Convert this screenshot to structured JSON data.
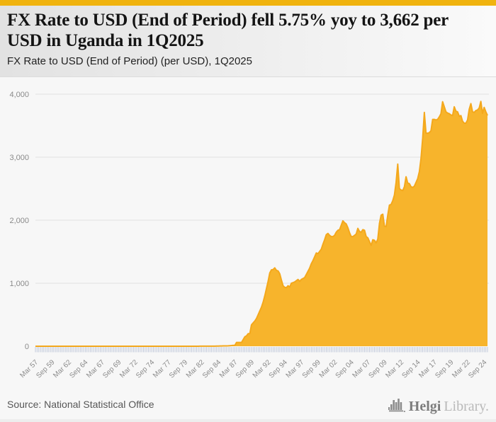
{
  "header": {
    "accent_color": "#f0b30e",
    "title": "FX Rate to USD (End of Period) fell 5.75% yoy to 3,662 per USD in Uganda in 1Q2025",
    "subtitle": "FX Rate to USD (End of Period) (per USD), 1Q2025"
  },
  "footer": {
    "source": "Source: National Statistical Office",
    "logo_primary": "Helgi",
    "logo_secondary": "Library."
  },
  "chart_data": {
    "type": "area",
    "title": "FX Rate to USD (End of Period) (per USD), 1Q2025",
    "series_name": "FX Rate to USD (End of Period), Uganda",
    "unit": "UGX per USD",
    "frequency": "quarterly",
    "start_period": "Mar 1957",
    "end_period": "Mar 2025",
    "last_value": 3662,
    "yoy_change_pct": -5.75,
    "ylim": [
      0,
      4000
    ],
    "y_ticks": [
      0,
      1000,
      2000,
      3000,
      4000
    ],
    "y_tick_labels": [
      "0",
      "1,000",
      "2,000",
      "3,000",
      "4,000"
    ],
    "grid": true,
    "legend": "none",
    "area_color": "#f7b42c",
    "area_edge_color": "#f4a81c",
    "grid_color": "#e2e2e2",
    "tick_color": "#bcc5d8",
    "axis_label_color": "#8a8a8a",
    "x_tick_every_n_points": 10,
    "x_tick_labels": [
      "Mar 57",
      "Sep 59",
      "Mar 62",
      "Sep 64",
      "Mar 67",
      "Sep 69",
      "Mar 72",
      "Sep 74",
      "Mar 77",
      "Sep 79",
      "Mar 82",
      "Sep 84",
      "Mar 87",
      "Sep 89",
      "Mar 92",
      "Sep 94",
      "Mar 97",
      "Sep 99",
      "Mar 02",
      "Sep 04",
      "Mar 07",
      "Sep 09",
      "Mar 12",
      "Sep 14",
      "Mar 17",
      "Sep 19",
      "Mar 22",
      "Sep 24"
    ],
    "values": [
      0.1,
      0.1,
      0.1,
      0.1,
      0.1,
      0.1,
      0.1,
      0.1,
      0.1,
      0.1,
      0.1,
      0.1,
      0.1,
      0.1,
      0.1,
      0.1,
      0.1,
      0.1,
      0.1,
      0.1,
      0.1,
      0.1,
      0.1,
      0.1,
      0.1,
      0.1,
      0.1,
      0.1,
      0.1,
      0.1,
      0.1,
      0.1,
      0.1,
      0.1,
      0.1,
      0.1,
      0.1,
      0.1,
      0.1,
      0.1,
      0.1,
      0.1,
      0.1,
      0.1,
      0.1,
      0.1,
      0.1,
      0.1,
      0.1,
      0.1,
      0.1,
      0.1,
      0.1,
      0.1,
      0.1,
      0.1,
      0.1,
      0.1,
      0.1,
      0.1,
      0.1,
      0.1,
      0.1,
      0.1,
      0.1,
      0.1,
      0.1,
      0.1,
      0.1,
      0.1,
      0.1,
      0.1,
      0.1,
      0.1,
      0.1,
      0.1,
      0.1,
      0.1,
      0.1,
      0.1,
      0.1,
      0.1,
      0.1,
      0.1,
      0.1,
      0.1,
      0.1,
      0.1,
      0.1,
      0.1,
      0.1,
      0.1,
      0.1,
      0.1,
      0.1,
      0.1,
      0.1,
      0.1,
      0.5,
      0.8,
      0.9,
      0.9,
      0.9,
      0.9,
      1.1,
      1.3,
      1.4,
      1.5,
      2,
      2.5,
      3,
      3.6,
      4.5,
      5,
      5.5,
      6,
      7,
      9,
      11,
      14,
      14,
      60,
      60,
      60,
      60,
      106,
      150,
      165,
      200,
      200,
      340,
      370,
      400,
      440,
      500,
      560,
      620,
      700,
      800,
      915,
      1030,
      1163,
      1212,
      1217,
      1244,
      1205,
      1195,
      1150,
      1050,
      960,
      935,
      930,
      960,
      940,
      1000,
      1009,
      1020,
      1040,
      1060,
      1030,
      1060,
      1075,
      1090,
      1140,
      1190,
      1240,
      1310,
      1360,
      1420,
      1480,
      1470,
      1505,
      1540,
      1620,
      1690,
      1770,
      1790,
      1760,
      1740,
      1740,
      1760,
      1810,
      1840,
      1850,
      1920,
      1990,
      1960,
      1940,
      1880,
      1800,
      1740,
      1740,
      1760,
      1780,
      1870,
      1820,
      1810,
      1850,
      1840,
      1740,
      1720,
      1660,
      1600,
      1690,
      1680,
      1640,
      1700,
      1950,
      2080,
      2095,
      1905,
      1900,
      2080,
      2240,
      2250,
      2310,
      2400,
      2600,
      2890,
      2500,
      2480,
      2470,
      2530,
      2690,
      2590,
      2580,
      2530,
      2520,
      2540,
      2600,
      2660,
      2770,
      2980,
      3300,
      3710,
      3380,
      3380,
      3390,
      3420,
      3600,
      3600,
      3590,
      3600,
      3640,
      3690,
      3880,
      3800,
      3720,
      3700,
      3690,
      3670,
      3660,
      3800,
      3730,
      3720,
      3650,
      3660,
      3570,
      3540,
      3540,
      3590,
      3760,
      3850,
      3720,
      3710,
      3740,
      3750,
      3780,
      3885,
      3695,
      3790,
      3720,
      3662
    ]
  }
}
